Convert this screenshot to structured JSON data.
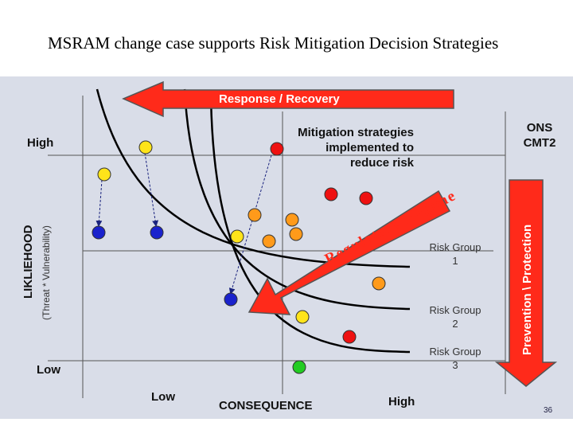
{
  "slide": {
    "title": "MSRAM change case supports Risk Mitigation Decision Strategies",
    "page_number": "36"
  },
  "diagram": {
    "banner_top": "Response / Recovery",
    "right_arrow": "Prevention \\ Protection",
    "diagonal_arrow": "Regulatory Regime",
    "mitigation_note": [
      "Mitigation strategies",
      "implemented to",
      "reduce risk"
    ],
    "corner_label": [
      "ONS",
      "CMT2"
    ],
    "y_axis_title": "LIKLIEHOOD",
    "y_axis_subtitle": "(Threat * Vulnerability)",
    "y_high": "High",
    "y_low": "Low",
    "x_axis_title": "CONSEQUENCE",
    "x_low": "Low",
    "x_high": "High",
    "risk_groups": [
      {
        "name": "Risk Group",
        "number": "1"
      },
      {
        "name": "Risk Group",
        "number": "2"
      },
      {
        "name": "Risk Group",
        "number": "3"
      }
    ],
    "colors": {
      "panel": "#d9dde8",
      "arrow_red": "#ff2a1a",
      "dot_red": "#ee1111",
      "dot_orange": "#ff9a1a",
      "dot_yellow": "#ffe41a",
      "dot_blue": "#1a22cc",
      "dot_green": "#22cc22"
    }
  }
}
